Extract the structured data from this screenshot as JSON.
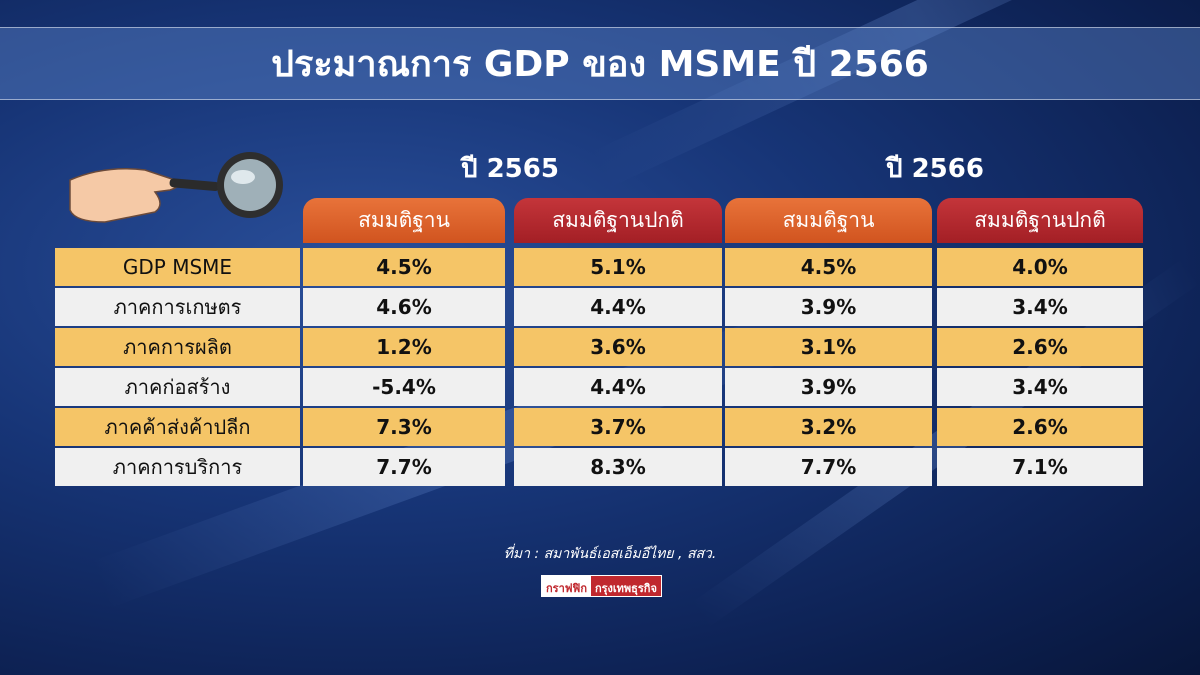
{
  "header": {
    "title": "ประมาณการ GDP ของ MSME ปี 2566"
  },
  "table": {
    "years": [
      "ปี 2565",
      "ปี 2566"
    ],
    "columns": [
      "สมมติฐาน",
      "สมมติฐานปกติ",
      "สมมติฐาน",
      "สมมติฐานปกติ"
    ],
    "rows": [
      [
        "GDP MSME",
        "4.5%",
        "5.1%",
        "4.5%",
        "4.0%"
      ],
      [
        "ภาคการเกษตร",
        "4.6%",
        "4.4%",
        "3.9%",
        "3.4%"
      ],
      [
        "ภาคการผลิต",
        "1.2%",
        "3.6%",
        "3.1%",
        "2.6%"
      ],
      [
        "ภาคก่อสร้าง",
        "-5.4%",
        "4.4%",
        "3.9%",
        "3.4%"
      ],
      [
        "ภาคค้าส่งค้าปลีก",
        "7.3%",
        "3.7%",
        "3.2%",
        "2.6%"
      ],
      [
        "ภาคการบริการ",
        "7.7%",
        "8.3%",
        "7.7%",
        "7.1%"
      ]
    ]
  },
  "footer": {
    "source": "ที่มา : สมาพันธ์เอสเอ็มอีไทย , สสว.",
    "logo": [
      "กราฟฟิก",
      "กรุงเทพธุรกิจ"
    ]
  }
}
